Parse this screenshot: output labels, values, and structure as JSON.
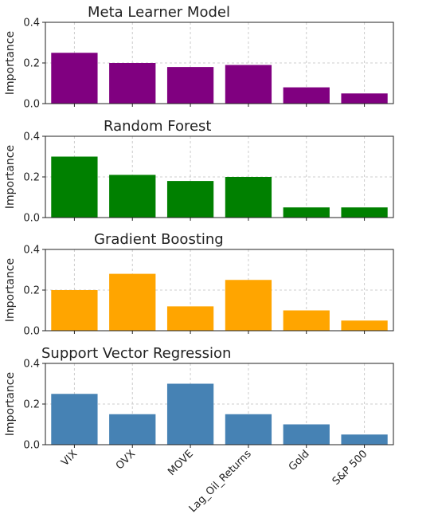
{
  "chart_data": [
    {
      "type": "bar",
      "title": "Meta Learner Model",
      "ylabel": "Importance",
      "color": "#800080",
      "categories": [
        "VIX",
        "OVX",
        "MOVE",
        "Lag_Oil_Returns",
        "Gold",
        "S&P 500"
      ],
      "values": [
        0.25,
        0.2,
        0.18,
        0.19,
        0.08,
        0.05
      ],
      "ylim": [
        0,
        0.4
      ],
      "yticks": [
        "0.0",
        "0.2",
        "0.4"
      ],
      "grid": true
    },
    {
      "type": "bar",
      "title": "Random Forest",
      "ylabel": "Importance",
      "color": "#008000",
      "categories": [
        "VIX",
        "OVX",
        "MOVE",
        "Lag_Oil_Returns",
        "Gold",
        "S&P 500"
      ],
      "values": [
        0.3,
        0.21,
        0.18,
        0.2,
        0.05,
        0.05
      ],
      "ylim": [
        0,
        0.4
      ],
      "yticks": [
        "0.0",
        "0.2",
        "0.4"
      ],
      "grid": true
    },
    {
      "type": "bar",
      "title": "Gradient Boosting",
      "ylabel": "Importance",
      "color": "#FFA500",
      "categories": [
        "VIX",
        "OVX",
        "MOVE",
        "Lag_Oil_Returns",
        "Gold",
        "S&P 500"
      ],
      "values": [
        0.2,
        0.28,
        0.12,
        0.25,
        0.1,
        0.05
      ],
      "ylim": [
        0,
        0.4
      ],
      "yticks": [
        "0.0",
        "0.2",
        "0.4"
      ],
      "grid": true
    },
    {
      "type": "bar",
      "title": "Support Vector Regression",
      "ylabel": "Importance",
      "color": "#4682B4",
      "categories": [
        "VIX",
        "OVX",
        "MOVE",
        "Lag_Oil_Returns",
        "Gold",
        "S&P 500"
      ],
      "values": [
        0.25,
        0.15,
        0.3,
        0.15,
        0.1,
        0.05
      ],
      "ylim": [
        0,
        0.4
      ],
      "yticks": [
        "0.0",
        "0.2",
        "0.4"
      ],
      "grid": true
    }
  ]
}
